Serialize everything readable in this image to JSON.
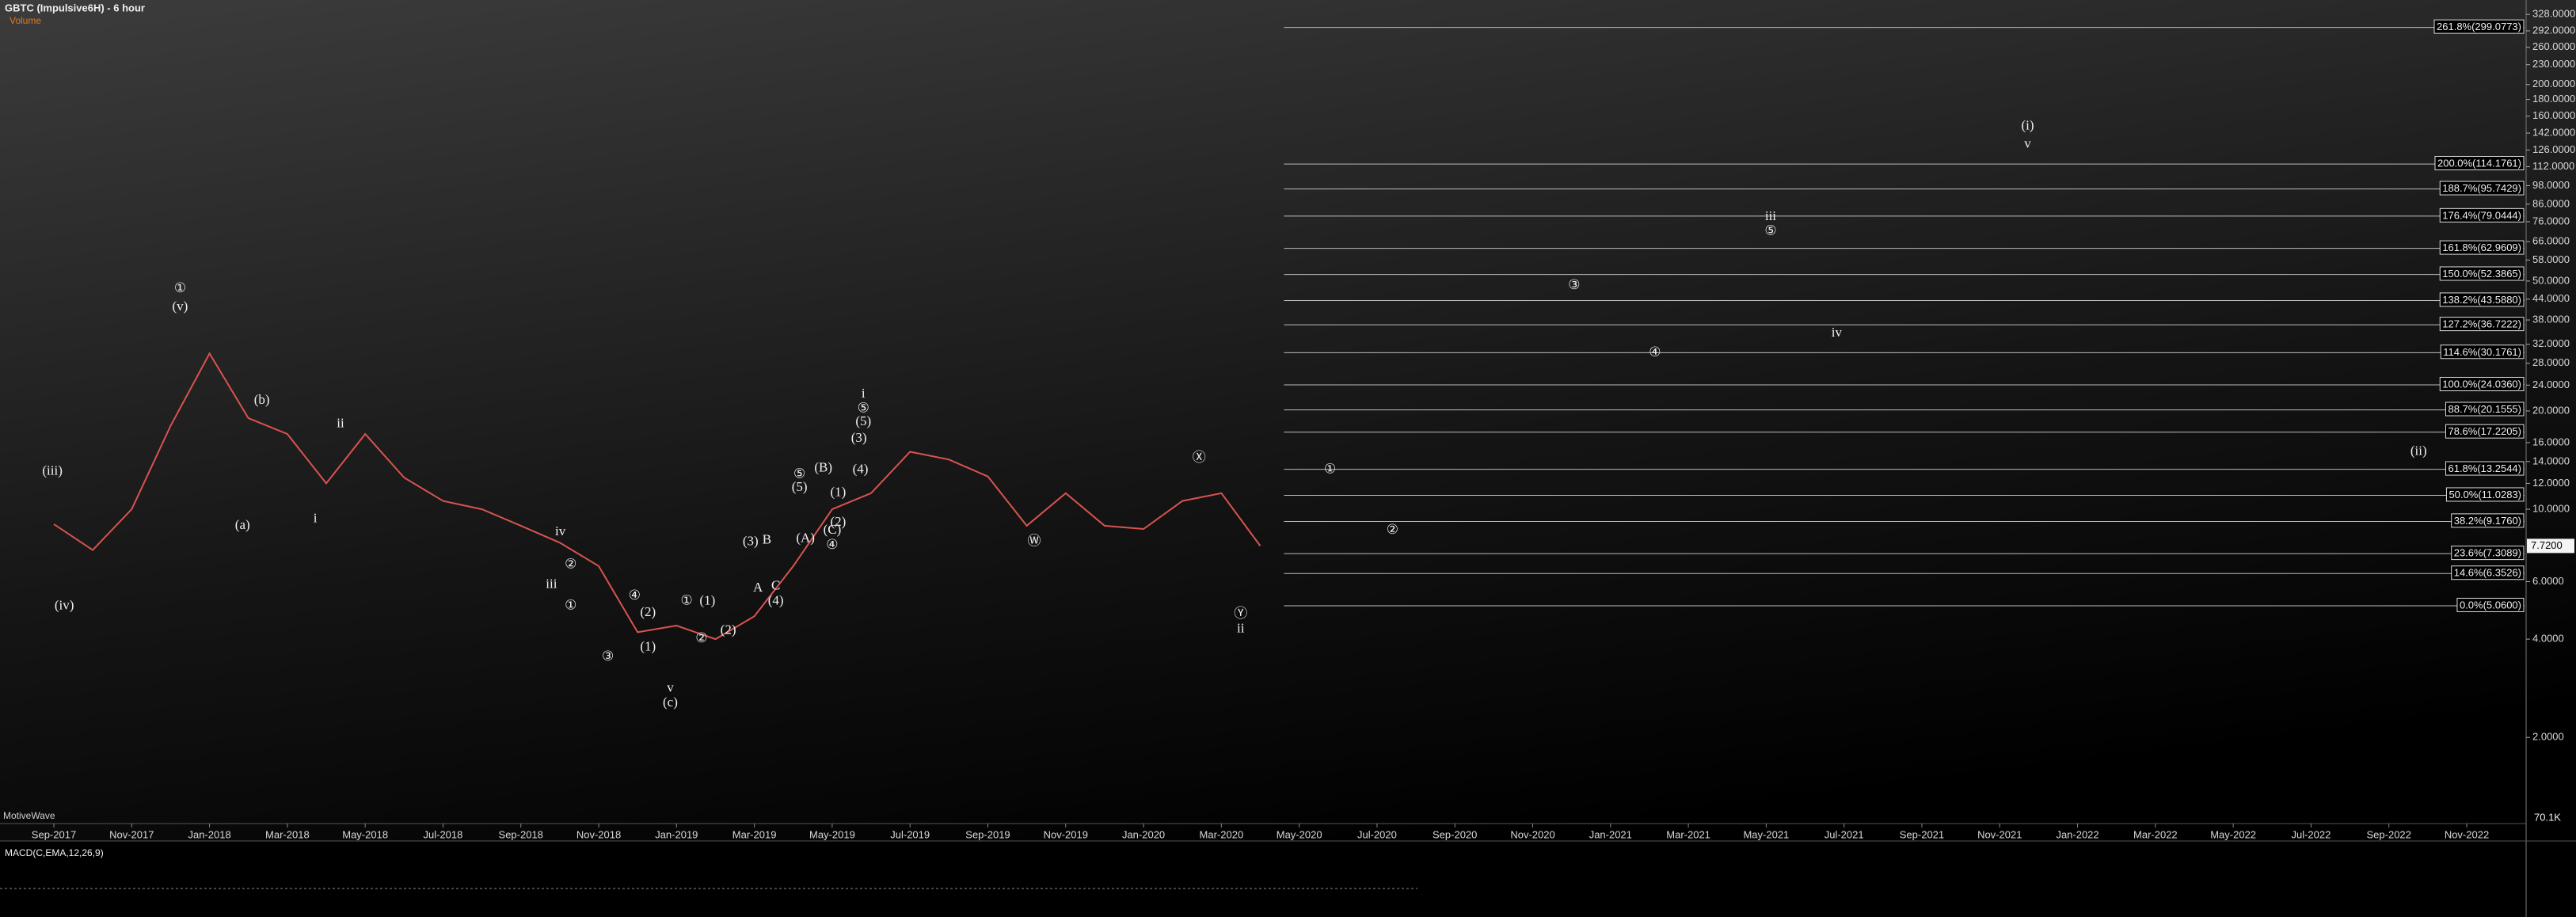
{
  "title": "GBTC (Impulsive6H) - 6 hour",
  "subtitle": "Volume",
  "watermark": "MotiveWave",
  "chart_data": {
    "type": "line",
    "categories": [
      "Sep-2017",
      null,
      "Nov-2017",
      null,
      "Jan-2018",
      null,
      "Mar-2018",
      null,
      "May-2018",
      null,
      "Jul-2018",
      null,
      "Sep-2018",
      null,
      "Nov-2018",
      null,
      "Jan-2019",
      null,
      "Mar-2019",
      null,
      "May-2019",
      null,
      "Jul-2019",
      null,
      "Sep-2019",
      null,
      "Nov-2019",
      null,
      "Jan-2020",
      null,
      "Mar-2020",
      null,
      "May-2020",
      null,
      "Jul-2020",
      null,
      "Sep-2020",
      null,
      "Nov-2020",
      null,
      "Jan-2021",
      null,
      "Mar-2021",
      null,
      "May-2021",
      null,
      "Jul-2021",
      null,
      "Sep-2021",
      null,
      "Nov-2021",
      null,
      "Jan-2022",
      null,
      "Mar-2022",
      null,
      "May-2022",
      null,
      "Jul-2022",
      null,
      "Sep-2022",
      null,
      "Nov-2022"
    ],
    "values": [
      9,
      7.5,
      10,
      18,
      30,
      19,
      17,
      12,
      17,
      12.5,
      10.6,
      10,
      8.9,
      7.9,
      6.7,
      4.2,
      4.4,
      4.0,
      4.7,
      6.7,
      10,
      11.2,
      15,
      14.2,
      12.6,
      8.9,
      11.2,
      8.9,
      8.7,
      10.6,
      11.2,
      7.72,
      null,
      null,
      null,
      null,
      null,
      null,
      null,
      null,
      null,
      null,
      null,
      null,
      null,
      null,
      null,
      null,
      null,
      null,
      null,
      null,
      null,
      null,
      null,
      null,
      null,
      null,
      null,
      null,
      null,
      null,
      null
    ],
    "color": "#d9534f",
    "log_scale": true,
    "ylim": [
      1.12,
      363
    ],
    "yticks": [
      {
        "value": 328,
        "label": "328.0000"
      },
      {
        "value": 292,
        "label": "292.0000"
      },
      {
        "value": 260,
        "label": "260.0000"
      },
      {
        "value": 230,
        "label": "230.0000"
      },
      {
        "value": 200,
        "label": "200.0000"
      },
      {
        "value": 180,
        "label": "180.0000"
      },
      {
        "value": 160,
        "label": "160.0000"
      },
      {
        "value": 142,
        "label": "142.0000"
      },
      {
        "value": 126,
        "label": "126.0000"
      },
      {
        "value": 112,
        "label": "112.0000"
      },
      {
        "value": 98,
        "label": "98.0000"
      },
      {
        "value": 86,
        "label": "86.0000"
      },
      {
        "value": 76,
        "label": "76.0000"
      },
      {
        "value": 66,
        "label": "66.0000"
      },
      {
        "value": 58,
        "label": "58.0000"
      },
      {
        "value": 50,
        "label": "50.0000"
      },
      {
        "value": 44,
        "label": "44.0000"
      },
      {
        "value": 38,
        "label": "38.0000"
      },
      {
        "value": 32,
        "label": "32.0000"
      },
      {
        "value": 28,
        "label": "28.0000"
      },
      {
        "value": 24,
        "label": "24.0000"
      },
      {
        "value": 20,
        "label": "20.0000"
      },
      {
        "value": 16,
        "label": "16.0000"
      },
      {
        "value": 14,
        "label": "14.0000"
      },
      {
        "value": 12,
        "label": "12.0000"
      },
      {
        "value": 10,
        "label": "10.0000"
      },
      {
        "value": 6,
        "label": "6.0000"
      },
      {
        "value": 4,
        "label": "4.0000"
      },
      {
        "value": 2,
        "label": "2.0000"
      }
    ],
    "last_price": {
      "value": 7.72,
      "label": "7.7200"
    },
    "fib_levels": [
      {
        "value": 299.0773,
        "label": "261.8%(299.0773)"
      },
      {
        "value": 114.1761,
        "label": "200.0%(114.1761)"
      },
      {
        "value": 95.7429,
        "label": "188.7%(95.7429)"
      },
      {
        "value": 79.0444,
        "label": "176.4%(79.0444)"
      },
      {
        "value": 62.9609,
        "label": "161.8%(62.9609)"
      },
      {
        "value": 52.3865,
        "label": "150.0%(52.3865)"
      },
      {
        "value": 43.588,
        "label": "138.2%(43.5880)"
      },
      {
        "value": 36.7222,
        "label": "127.2%(36.7222)"
      },
      {
        "value": 30.1761,
        "label": "114.6%(30.1761)"
      },
      {
        "value": 24.036,
        "label": "100.0%(24.0360)"
      },
      {
        "value": 20.1555,
        "label": "88.7%(20.1555)"
      },
      {
        "value": 17.2205,
        "label": "78.6%(17.2205)"
      },
      {
        "value": 13.2544,
        "label": "61.8%(13.2544)"
      },
      {
        "value": 11.0283,
        "label": "50.0%(11.0283)"
      },
      {
        "value": 9.176,
        "label": "38.2%(9.1760)"
      },
      {
        "value": 7.3089,
        "label": "23.6%(7.3089)"
      },
      {
        "value": 6.3526,
        "label": "14.6%(6.3526)"
      },
      {
        "value": 5.06,
        "label": "0.0%(5.0600)"
      }
    ],
    "wave_labels": [
      "(iii)",
      "(iv)",
      "①",
      "(v)",
      "(b)",
      "(a)",
      "ii",
      "i",
      "iv",
      "iii",
      "②",
      "①",
      "③",
      "④",
      "(2)",
      "(1)",
      "v",
      "(c)",
      "①",
      "(1)",
      "②",
      "(2)",
      "(3)",
      "B",
      "A",
      "C",
      "(4)",
      "⑤",
      "(5)",
      "(A)",
      "(B)",
      "(C)",
      "④",
      "(2)",
      "(1)",
      "i",
      "⑤",
      "(5)",
      "(3)",
      "(4)",
      "Ⓦ",
      "Ⓧ",
      "Ⓨ",
      "ii",
      "①",
      "②",
      "③",
      "④",
      "iii",
      "⑤",
      "iv",
      "(i)",
      "v",
      "(ii)"
    ],
    "volume_label": "70.1K",
    "macd_title": "MACD(C,EMA,12,26,9)"
  }
}
